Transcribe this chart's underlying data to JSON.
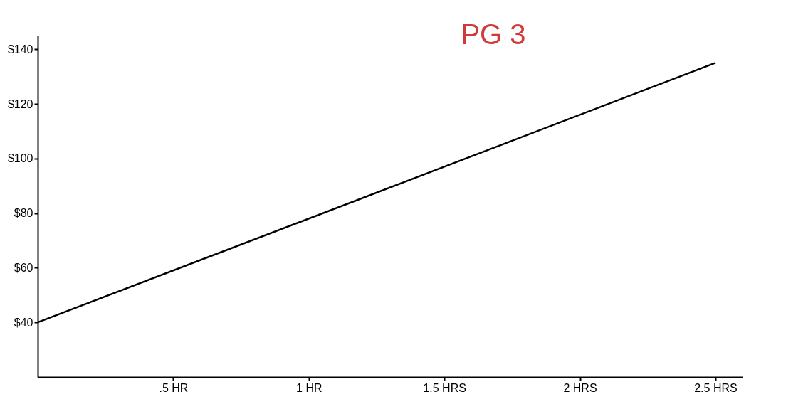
{
  "chart_data": {
    "type": "line",
    "x": [
      0,
      2.5
    ],
    "series": [
      {
        "color": "#000000",
        "values": [
          40,
          135
        ]
      }
    ],
    "xlim": [
      0,
      2.6
    ],
    "ylim": [
      20,
      145
    ],
    "xticks": [
      {
        "value": 0.5,
        "label": ".5 HR"
      },
      {
        "value": 1,
        "label": "1 HR"
      },
      {
        "value": 1.5,
        "label": "1.5 HRS"
      },
      {
        "value": 2,
        "label": "2 HRS"
      },
      {
        "value": 2.5,
        "label": "2.5 HRS"
      }
    ],
    "yticks": [
      {
        "value": 40,
        "label": "$40"
      },
      {
        "value": 60,
        "label": "$60"
      },
      {
        "value": 80,
        "label": "$80"
      },
      {
        "value": 100,
        "label": "$100"
      },
      {
        "value": 120,
        "label": "$120"
      },
      {
        "value": 140,
        "label": "$140"
      }
    ],
    "grid": false,
    "marker": "none",
    "line_style": "solid",
    "annotations": [
      "PG 3"
    ]
  }
}
